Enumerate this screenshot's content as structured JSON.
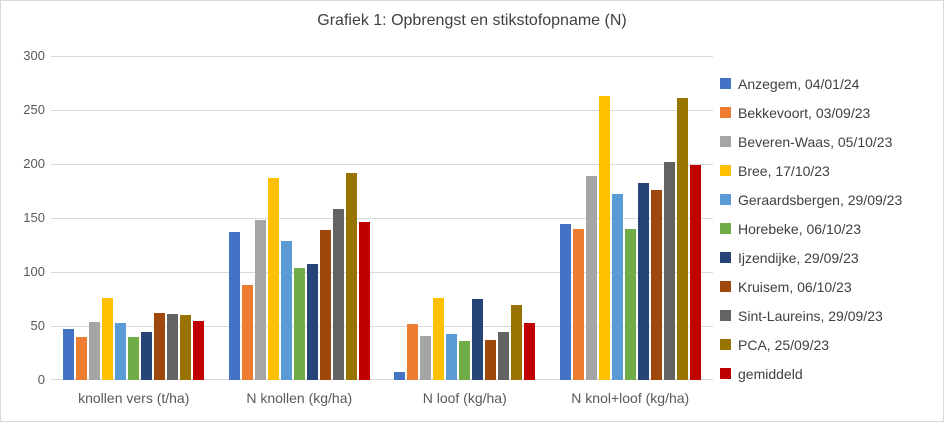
{
  "title": "Grafiek 1: Opbrengst en stikstofopname (N)",
  "chart_data": {
    "type": "bar",
    "title": "Grafiek 1: Opbrengst en stikstofopname (N)",
    "categories": [
      "knollen vers (t/ha)",
      "N knollen (kg/ha)",
      "N loof (kg/ha)",
      "N knol+loof (kg/ha)"
    ],
    "series": [
      {
        "name": "Anzegem, 04/01/24",
        "color": "#4472C4",
        "values": [
          47,
          137,
          7,
          144
        ]
      },
      {
        "name": "Bekkevoort, 03/09/23",
        "color": "#ED7D31",
        "values": [
          40,
          88,
          52,
          140
        ]
      },
      {
        "name": "Beveren-Waas, 05/10/23",
        "color": "#A5A5A5",
        "values": [
          54,
          148,
          41,
          189
        ]
      },
      {
        "name": "Bree, 17/10/23",
        "color": "#FFC000",
        "values": [
          76,
          187,
          76,
          263
        ]
      },
      {
        "name": "Geraardsbergen, 29/09/23",
        "color": "#5B9BD5",
        "values": [
          53,
          129,
          43,
          172
        ]
      },
      {
        "name": "Horebeke, 06/10/23",
        "color": "#70AD47",
        "values": [
          40,
          104,
          36,
          140
        ]
      },
      {
        "name": "Ijzendijke, 29/09/23",
        "color": "#264478",
        "values": [
          44,
          107,
          75,
          182
        ]
      },
      {
        "name": "Kruisem, 06/10/23",
        "color": "#9E480E",
        "values": [
          62,
          139,
          37,
          176
        ]
      },
      {
        "name": "Sint-Laureins, 29/09/23",
        "color": "#636363",
        "values": [
          61,
          158,
          44,
          202
        ]
      },
      {
        "name": "PCA, 25/09/23",
        "color": "#997300",
        "values": [
          60,
          192,
          69,
          261
        ]
      },
      {
        "name": "gemiddeld",
        "color": "#C00000",
        "values": [
          55,
          146,
          53,
          199
        ]
      }
    ],
    "xlabel": "",
    "ylabel": "",
    "ylim": [
      0,
      300
    ],
    "yticks": [
      0,
      50,
      100,
      150,
      200,
      250,
      300
    ],
    "grid": true,
    "legend_position": "right"
  },
  "colors": {
    "gridline": "#d9d9d9",
    "axis_text": "#595959",
    "title_text": "#404040",
    "legend_text": "#404040",
    "background": "#ffffff"
  }
}
